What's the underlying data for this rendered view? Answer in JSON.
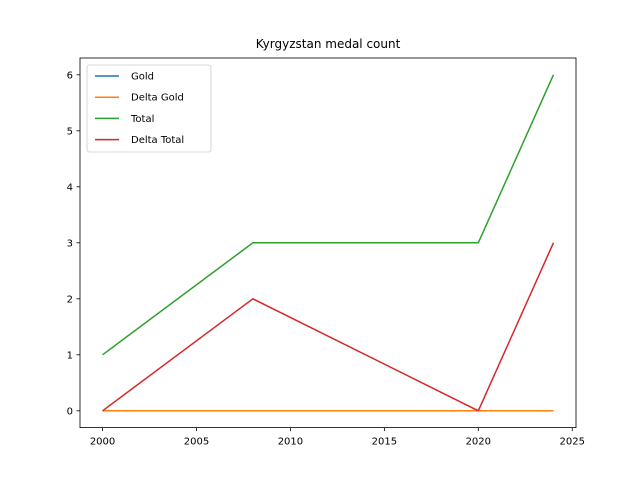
{
  "chart_data": {
    "type": "line",
    "title": "Kyrgyzstan medal count",
    "xlabel": "",
    "ylabel": "",
    "x": [
      2000,
      2008,
      2020,
      2024
    ],
    "xlim": [
      1998.8,
      2025.2
    ],
    "ylim": [
      -0.3,
      6.3
    ],
    "xticks": [
      2000,
      2005,
      2010,
      2015,
      2020,
      2025
    ],
    "yticks": [
      0,
      1,
      2,
      3,
      4,
      5,
      6
    ],
    "grid": false,
    "legend_position": "upper-left",
    "series": [
      {
        "name": "Gold",
        "color": "#1f77b4",
        "values": [
          0,
          0,
          0,
          0
        ]
      },
      {
        "name": "Delta Gold",
        "color": "#ff7f0e",
        "values": [
          0,
          0,
          0,
          0
        ]
      },
      {
        "name": "Total",
        "color": "#2ca02c",
        "values": [
          1,
          3,
          3,
          6
        ]
      },
      {
        "name": "Delta Total",
        "color": "#d62728",
        "values": [
          0,
          2,
          0,
          3
        ]
      }
    ]
  }
}
